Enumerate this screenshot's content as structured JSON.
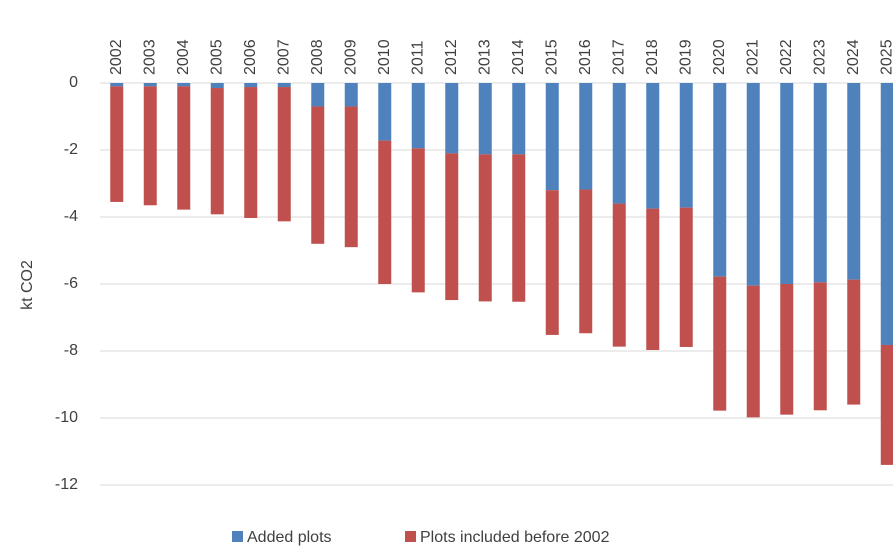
{
  "chart_data": {
    "type": "stacked-bar",
    "y_label": "kt CO2",
    "categories": [
      "2002",
      "2003",
      "2004",
      "2005",
      "2006",
      "2007",
      "2008",
      "2009",
      "2010",
      "2011",
      "2012",
      "2013",
      "2014",
      "2015",
      "2016",
      "2017",
      "2018",
      "2019",
      "2020",
      "2021",
      "2022",
      "2023",
      "2024",
      "2025"
    ],
    "series": [
      {
        "name": "Added plots",
        "color": "#4f81bd",
        "values": [
          -0.1,
          -0.1,
          -0.1,
          -0.15,
          -0.12,
          -0.12,
          -0.7,
          -0.7,
          -1.72,
          -1.95,
          -2.1,
          -2.13,
          -2.13,
          -3.2,
          -3.18,
          -3.6,
          -3.75,
          -3.72,
          -5.78,
          -6.05,
          -6.0,
          -5.95,
          -5.87,
          -7.82
        ]
      },
      {
        "name": "Plots included before 2002",
        "color": "#c0504d",
        "values": [
          -3.45,
          -3.55,
          -3.68,
          -3.77,
          -3.91,
          -4.01,
          -4.1,
          -4.2,
          -4.28,
          -4.3,
          -4.38,
          -4.39,
          -4.4,
          -4.32,
          -4.29,
          -4.27,
          -4.22,
          -4.16,
          -4.0,
          -3.93,
          -3.9,
          -3.82,
          -3.73,
          -3.58
        ]
      }
    ],
    "ylim": [
      -12,
      0
    ],
    "yticks": [
      0,
      -2,
      -4,
      -6,
      -8,
      -10,
      -12
    ],
    "grid": true,
    "legend": "bottom"
  }
}
